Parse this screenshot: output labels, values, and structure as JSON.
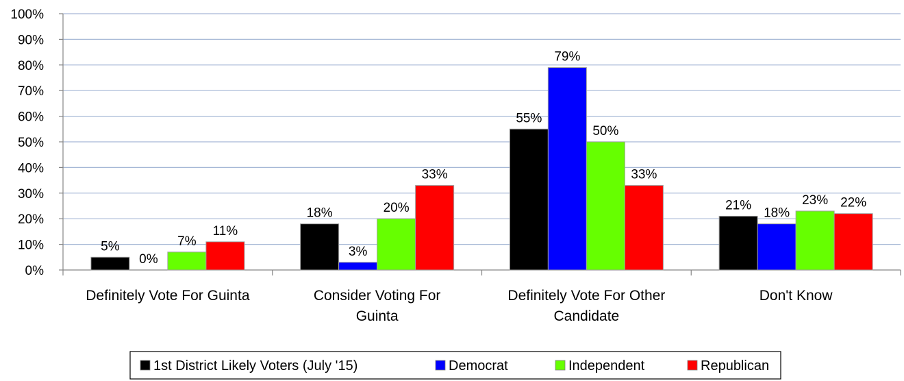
{
  "chart_data": {
    "type": "bar",
    "title": "",
    "xlabel": "",
    "ylabel": "",
    "ylim": [
      0,
      100
    ],
    "ytick_step": 10,
    "ytick_labels": [
      "0%",
      "10%",
      "20%",
      "30%",
      "40%",
      "50%",
      "60%",
      "70%",
      "80%",
      "90%",
      "100%"
    ],
    "grid": true,
    "legend_position": "bottom",
    "categories": [
      [
        "Definitely Vote For Guinta"
      ],
      [
        "Consider Voting For",
        "Guinta"
      ],
      [
        "Definitely Vote For Other",
        "Candidate"
      ],
      [
        "Don't Know"
      ]
    ],
    "series": [
      {
        "name": "1st District Likely Voters (July '15)",
        "color": "#000000",
        "values": [
          5,
          18,
          55,
          21
        ],
        "labels": [
          "5%",
          "18%",
          "55%",
          "21%"
        ]
      },
      {
        "name": "Democrat",
        "color": "#0000ff",
        "values": [
          0,
          3,
          79,
          18
        ],
        "labels": [
          "0%",
          "3%",
          "79%",
          "18%"
        ]
      },
      {
        "name": "Independent",
        "color": "#66ff00",
        "values": [
          7,
          20,
          50,
          23
        ],
        "labels": [
          "7%",
          "20%",
          "50%",
          "23%"
        ]
      },
      {
        "name": "Republican",
        "color": "#ff0000",
        "values": [
          11,
          33,
          33,
          22
        ],
        "labels": [
          "11%",
          "33%",
          "33%",
          "22%"
        ]
      }
    ],
    "grid_color": "#a6b8d6",
    "axis_color": "#868686"
  }
}
